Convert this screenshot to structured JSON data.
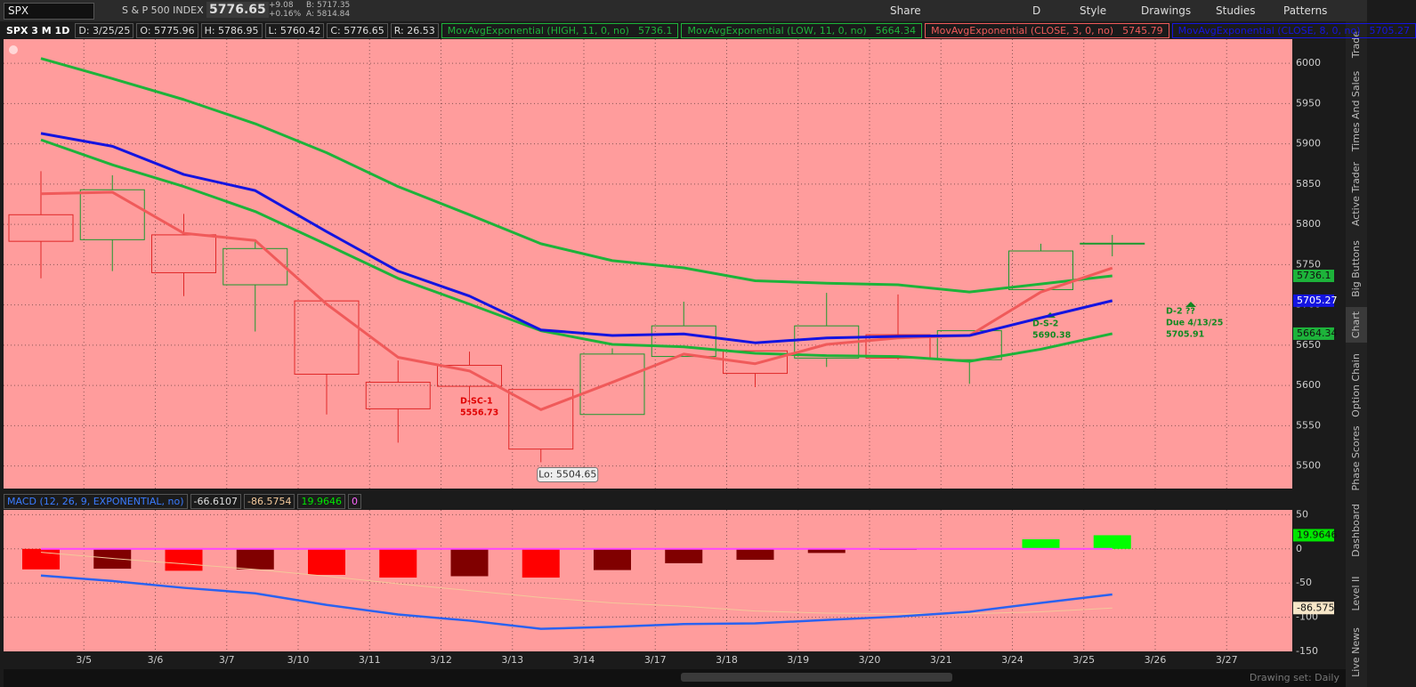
{
  "toolbar": {
    "symbol": "SPX",
    "description": "S & P 500 INDEX",
    "last": "5776.65",
    "change": "+9.08",
    "change_pct": "+0.16%",
    "bid": "B: 5717.35",
    "ask": "A: 5814.84",
    "buttons": [
      "Share",
      "D",
      "Style",
      "Drawings",
      "Studies",
      "Patterns"
    ]
  },
  "chart_header": [
    "SPX 3 M 1D",
    "D: 3/25/25",
    "O: 5775.96",
    "H: 5786.95",
    "L: 5760.42",
    "C: 5776.65",
    "R: 26.53"
  ],
  "chart_data": [
    {
      "type": "candlestick",
      "categories": [
        null,
        "3/5",
        "3/6",
        "3/7",
        "3/10",
        "3/11",
        "3/12",
        "3/13",
        "3/14",
        "3/17",
        "3/18",
        "3/19",
        "3/20",
        "3/21",
        "3/24",
        "3/25",
        "3/26",
        "3/27"
      ],
      "open": [
        5812,
        5781,
        5787,
        5725,
        5705,
        5604,
        5625,
        5595,
        5564,
        5636,
        5643,
        5634,
        5663,
        5632,
        5719,
        5775.96,
        null,
        null
      ],
      "high": [
        5866,
        5861,
        5813,
        5780,
        5705,
        5631,
        5642,
        5595,
        5646,
        5704,
        5643,
        5715,
        5713,
        5668,
        5776,
        5786.95,
        null,
        null
      ],
      "low": [
        5733,
        5742,
        5711,
        5667,
        5564,
        5529,
        5576,
        5504.65,
        5564,
        5636,
        5598,
        5623,
        5632,
        5602,
        5719,
        5760.42,
        null,
        null
      ],
      "close": [
        5779,
        5843,
        5740,
        5770,
        5614,
        5571,
        5599,
        5521,
        5639,
        5674,
        5615,
        5674,
        5634,
        5668,
        5767,
        5776.65,
        null,
        null
      ],
      "up_color": "#1a9a2e",
      "down_color": "#e02828",
      "ylim": [
        5472,
        6030
      ],
      "yticks": [
        5500,
        5550,
        5600,
        5650,
        5700,
        5750,
        5800,
        5850,
        5900,
        5950,
        6000
      ],
      "grid": true,
      "series": [
        {
          "name": "MovAvgExponential (HIGH, 11, 0, no)",
          "color": "#1db33a",
          "tag": true,
          "values": [
            6006,
            5981,
            5955,
            5925,
            5889,
            5847,
            5812,
            5776,
            5755,
            5746,
            5730,
            5727,
            5725,
            5716,
            5726,
            5736.1,
            null,
            null
          ]
        },
        {
          "name": "MovAvgExponential (LOW, 11, 0, no)",
          "color": "#1db33a",
          "tag": true,
          "values": [
            5905,
            5874,
            5847,
            5816,
            5775,
            5733,
            5701,
            5668,
            5651,
            5648,
            5640,
            5637,
            5636,
            5630,
            5645,
            5664.34,
            null,
            null
          ]
        },
        {
          "name": "MovAvgExponential (CLOSE, 3, 0, no)",
          "color": "#f05a5a",
          "tag": false,
          "values": [
            5838,
            5840,
            5789,
            5780,
            5701,
            5635,
            5618,
            5570,
            5604,
            5639,
            5627,
            5651,
            5659,
            5662,
            5716,
            5745.79,
            null,
            null
          ]
        },
        {
          "name": "MovAvgExponential (CLOSE, 8, 0, no)",
          "color": "#1414e0",
          "tag": true,
          "values": [
            5913,
            5897,
            5862,
            5842,
            5791,
            5742,
            5711,
            5669,
            5662,
            5664,
            5653,
            5659,
            5661,
            5662,
            5684,
            5705.27,
            null,
            null
          ]
        }
      ],
      "low_label": "Lo: 5504.65",
      "annotations": [
        {
          "lines": [
            "D-SC-1",
            "5556.73"
          ],
          "color": "#e00000"
        },
        {
          "lines": [
            "D-S-2",
            "5690.38"
          ],
          "color": "#138a22"
        },
        {
          "lines": [
            "D-2 ??",
            "Due 4/13/25",
            "5705.91"
          ],
          "color": "#138a22"
        }
      ]
    },
    {
      "type": "macd",
      "title": "MACD (12, 26, 9, EXPONENTIAL, no)",
      "ylim": [
        -150,
        57
      ],
      "yticks": [
        -150,
        -100,
        -50,
        0,
        50
      ],
      "grid": true,
      "series": [
        {
          "color": "#2a62f0",
          "tag": false,
          "values": [
            -39,
            -47,
            -57,
            -65,
            -82,
            -96,
            -105,
            -117,
            -114,
            -110,
            -109,
            -104,
            -99,
            -92,
            -79,
            -66.6107
          ]
        },
        {
          "color": "#f3c89a",
          "tag": true,
          "values": [
            -5,
            -14,
            -22,
            -30,
            -40,
            -51,
            -61,
            -71,
            -79,
            -84,
            -91,
            -94,
            -95,
            -95,
            -92,
            -86.5754
          ],
          "value_labels": [
            null,
            null,
            null,
            null,
            null,
            null,
            null,
            null,
            null,
            null,
            null,
            null,
            null,
            null,
            null,
            "-86.575"
          ]
        },
        {
          "tag": true,
          "color": "#00e600",
          "values": [
            -30,
            -29,
            -32,
            -30,
            -38,
            -42,
            -40,
            -42,
            -31,
            -21,
            -16,
            -6,
            -1.5,
            1,
            14,
            19.9646
          ],
          "colors": [
            "#ff0000",
            "#800000",
            "#ff0000",
            "#800000",
            "#ff0000",
            "#ff0000",
            "#800000",
            "#ff0000",
            "#800000",
            "#800000",
            "#800000",
            "#800000",
            "#800000",
            "#00cc00",
            "#00ff00",
            "#00ff00"
          ]
        },
        {
          "color": "#ff44ff",
          "tag": false,
          "values": [
            0,
            0,
            0,
            0,
            0,
            0,
            0,
            0,
            0,
            0,
            0,
            0,
            0,
            0,
            0,
            0
          ]
        }
      ]
    }
  ],
  "side_tabs": [
    "Trade",
    "Times And Sales",
    "Active Trader",
    "Big Buttons",
    "Chart",
    "Option Chain",
    "Phase Scores",
    "Dashboard",
    "Level II",
    "Live News"
  ],
  "status": "Drawing set: Daily"
}
